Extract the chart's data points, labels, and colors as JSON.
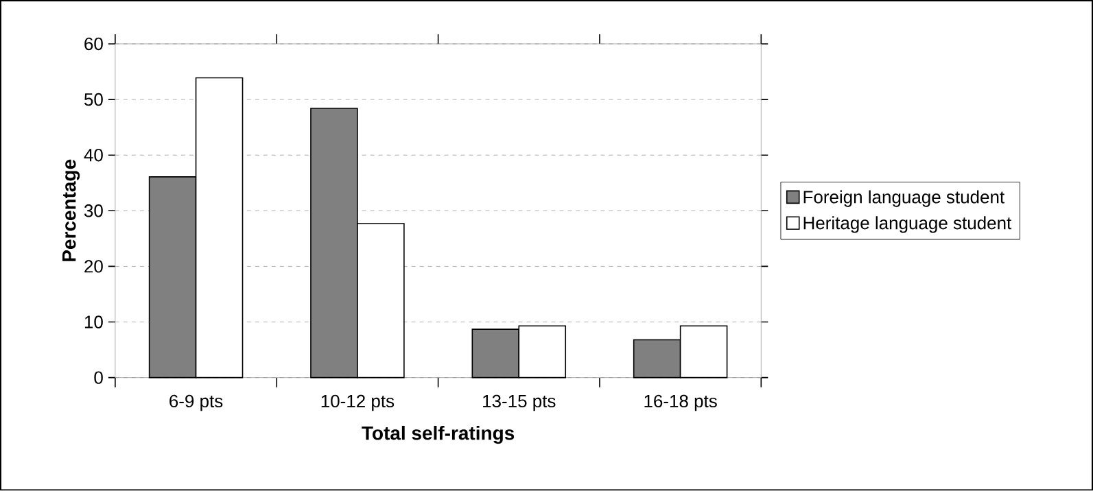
{
  "chart_data": {
    "type": "bar",
    "xlabel": "Total self-ratings",
    "ylabel": "Percentage",
    "categories": [
      "6-9 pts",
      "10-12 pts",
      "13-15 pts",
      "16-18 pts"
    ],
    "series": [
      {
        "name": "Foreign language student",
        "color": "#808080",
        "values": [
          36.1,
          48.4,
          8.7,
          6.8
        ]
      },
      {
        "name": "Heritage language student",
        "color": "#ffffff",
        "values": [
          53.9,
          27.7,
          9.3,
          9.3
        ]
      }
    ],
    "ylim": [
      0,
      60
    ],
    "yticks": [
      0,
      10,
      20,
      30,
      40,
      50,
      60
    ],
    "grid": "y",
    "legend": "right"
  }
}
